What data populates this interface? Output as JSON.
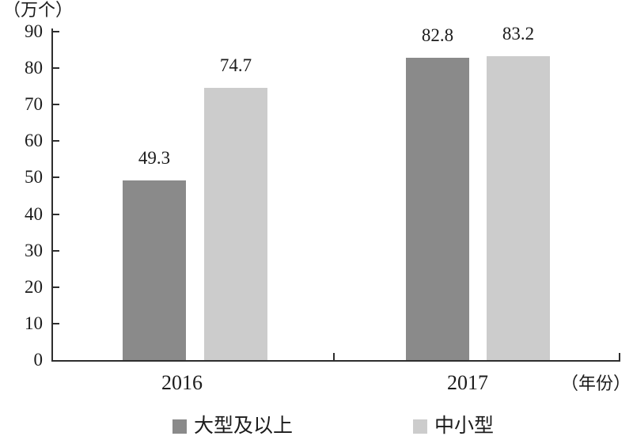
{
  "chart_data": {
    "type": "bar",
    "title": "",
    "categories": [
      "2016",
      "2017"
    ],
    "series": [
      {
        "name": "大型及以上",
        "color": "#8a8a8a",
        "values": [
          49.3,
          82.8
        ]
      },
      {
        "name": "中小型",
        "color": "#cccccc",
        "values": [
          74.7,
          83.2
        ]
      }
    ],
    "xlabel": "（年份）",
    "ylabel": "（万个）",
    "ylim": [
      0,
      90
    ],
    "yticks": [
      0,
      10,
      20,
      30,
      40,
      50,
      60,
      70,
      80,
      90
    ],
    "grid": false,
    "legend_position": "bottom",
    "axis_color": "#2e2e2e",
    "text_color": "#1b1b1b",
    "background_color": "#ffffff"
  }
}
